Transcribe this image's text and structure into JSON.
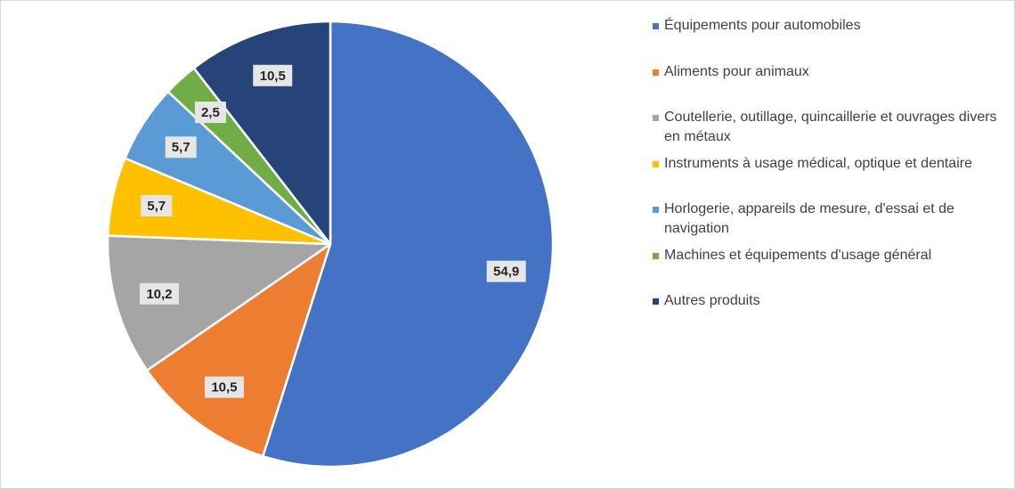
{
  "chart_data": {
    "type": "pie",
    "slices": [
      {
        "label": "Équipements pour automobiles",
        "value": 54.9,
        "value_text": "54,9",
        "color": "#4472c4"
      },
      {
        "label": "Aliments pour animaux",
        "value": 10.5,
        "value_text": "10,5",
        "color": "#ed7d31"
      },
      {
        "label": "Coutellerie, outillage, quincaillerie et ouvrages divers en métaux",
        "value": 10.2,
        "value_text": "10,2",
        "color": "#a5a5a5"
      },
      {
        "label": "Instruments à usage médical, optique et dentaire",
        "value": 5.7,
        "value_text": "5,7",
        "color": "#ffc000"
      },
      {
        "label": "Horlogerie, appareils de mesure, d'essai et de navigation",
        "value": 5.7,
        "value_text": "5,7",
        "color": "#5b9bd5"
      },
      {
        "label": "Machines et équipements d'usage général",
        "value": 2.5,
        "value_text": "2,5",
        "color": "#70ad47"
      },
      {
        "label": "Autres produits",
        "value": 10.5,
        "value_text": "10,5",
        "color": "#264478"
      }
    ],
    "start_angle": "12 o'clock",
    "direction": "clockwise",
    "legend_position": "right"
  }
}
